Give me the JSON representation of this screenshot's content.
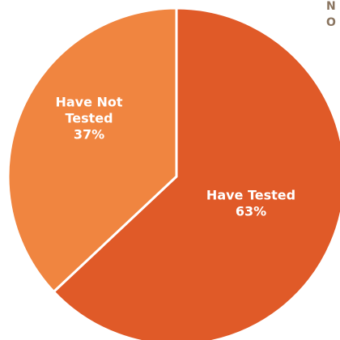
{
  "chart_data": {
    "type": "pie",
    "title": "",
    "slices": [
      {
        "label_lines": [
          "Have Tested"
        ],
        "value_label": "63%",
        "value": 63,
        "color": "#e05a28"
      },
      {
        "label_lines": [
          "Have Not",
          "Tested"
        ],
        "value_label": "37%",
        "value": 37,
        "color": "#f08540"
      }
    ],
    "border_color": "#ffffff",
    "corner_text_lines": [
      "N",
      "O"
    ],
    "corner_text_color": "#8a7560"
  }
}
